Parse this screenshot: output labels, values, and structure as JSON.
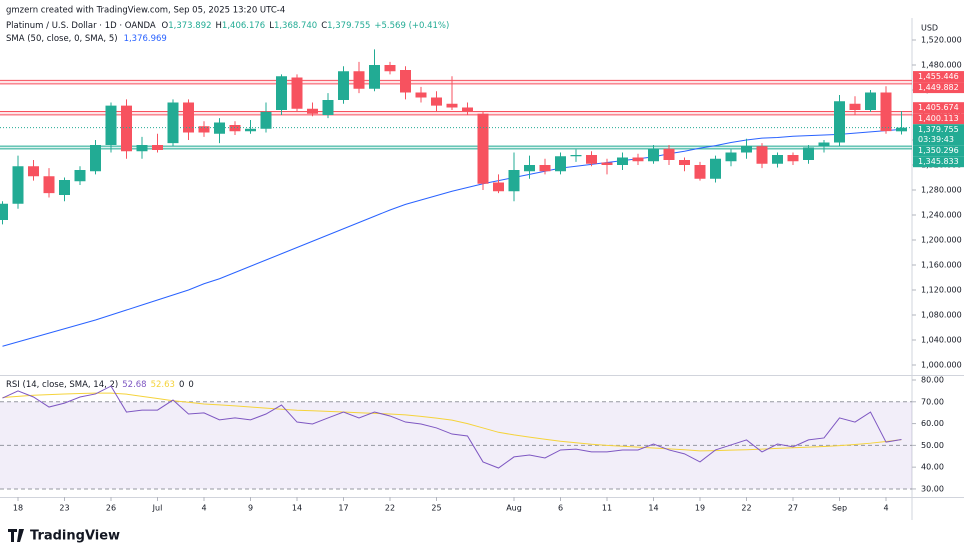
{
  "credit": "gmzern created with TradingView.com, Sep 05, 2025 13:20 UTC-4",
  "currency": "USD",
  "brand": "TradingView",
  "chart_data": [
    {
      "type": "candlestick",
      "title": "Platinum / U.S. Dollar · 1D · OANDA",
      "legend": [
        {
          "key": "O",
          "value": "1,373.892"
        },
        {
          "key": "H",
          "value": "1,406.176"
        },
        {
          "key": "L",
          "value": "1,368.740"
        },
        {
          "key": "C",
          "value": "1,379.755"
        }
      ],
      "change": "+5.569 (+0.41%)",
      "up_color": "#22ab94",
      "down_color": "#f7525f",
      "categories": [
        null,
        "18",
        null,
        null,
        "23",
        null,
        null,
        "26",
        null,
        null,
        "Jul",
        null,
        null,
        "4",
        null,
        null,
        "9",
        null,
        null,
        "14",
        null,
        null,
        "17",
        null,
        null,
        "22",
        null,
        null,
        "25",
        null,
        null,
        null,
        null,
        "Aug",
        null,
        null,
        "6",
        null,
        null,
        "11",
        null,
        null,
        "14",
        null,
        null,
        "19",
        null,
        null,
        "22",
        null,
        null,
        "27",
        null,
        null,
        "Sep",
        null,
        null,
        "4",
        null
      ],
      "open": [
        1232,
        1258,
        1318,
        1302,
        1272,
        1294,
        1310,
        1352,
        1415,
        1342,
        1352,
        1355,
        1420,
        1382,
        1370,
        1384,
        1374,
        1378,
        1408,
        1460,
        1410,
        1400,
        1424,
        1470,
        1442,
        1480,
        1472,
        1436,
        1428,
        1418,
        1412,
        1402,
        1292,
        1278,
        1310,
        1320,
        1310,
        1334,
        1336,
        1324,
        1320,
        1332,
        1326,
        1346,
        1328,
        1320,
        1298,
        1326,
        1340,
        1350,
        1322,
        1336,
        1328,
        1350,
        1356,
        1418,
        1408,
        1436,
        1373.892
      ],
      "high": [
        1262,
        1335,
        1328,
        1315,
        1300,
        1318,
        1360,
        1420,
        1425,
        1365,
        1370,
        1425,
        1425,
        1390,
        1395,
        1390,
        1392,
        1420,
        1465,
        1465,
        1420,
        1435,
        1478,
        1485,
        1505,
        1485,
        1478,
        1445,
        1438,
        1462,
        1420,
        1405,
        1305,
        1340,
        1335,
        1330,
        1340,
        1345,
        1342,
        1330,
        1340,
        1338,
        1352,
        1352,
        1332,
        1325,
        1335,
        1345,
        1362,
        1355,
        1340,
        1340,
        1352,
        1360,
        1432,
        1430,
        1440,
        1446,
        1406.176
      ],
      "low": [
        1225,
        1250,
        1295,
        1268,
        1262,
        1288,
        1305,
        1340,
        1330,
        1330,
        1340,
        1350,
        1360,
        1365,
        1355,
        1368,
        1370,
        1372,
        1400,
        1405,
        1398,
        1395,
        1418,
        1435,
        1438,
        1465,
        1425,
        1420,
        1405,
        1408,
        1400,
        1280,
        1275,
        1262,
        1298,
        1305,
        1305,
        1325,
        1318,
        1305,
        1312,
        1320,
        1322,
        1320,
        1310,
        1295,
        1292,
        1318,
        1330,
        1315,
        1316,
        1320,
        1322,
        1340,
        1350,
        1400,
        1405,
        1370,
        1368.74
      ],
      "close": [
        1258,
        1318,
        1302,
        1275,
        1296,
        1312,
        1352,
        1415,
        1342,
        1352,
        1344,
        1420,
        1372,
        1372,
        1388,
        1374,
        1378,
        1405,
        1462,
        1410,
        1402,
        1424,
        1470,
        1442,
        1480,
        1470,
        1436,
        1428,
        1415,
        1412,
        1406,
        1290,
        1278,
        1312,
        1320,
        1310,
        1334,
        1336,
        1322,
        1320,
        1332,
        1326,
        1346,
        1328,
        1320,
        1298,
        1330,
        1340,
        1350,
        1322,
        1336,
        1326,
        1348,
        1356,
        1422,
        1408,
        1436,
        1374.186,
        1379.755
      ],
      "sma": {
        "name": "SMA (50, close, 0, SMA, 5)",
        "value_label": "1,376.969",
        "color": "#2962ff",
        "values": [
          1030,
          1037,
          1044,
          1051,
          1058,
          1065,
          1072,
          1080,
          1088,
          1096,
          1104,
          1112,
          1120,
          1130,
          1138,
          1148,
          1158,
          1168,
          1178,
          1188,
          1198,
          1208,
          1218,
          1228,
          1238,
          1248,
          1257,
          1264,
          1271,
          1278,
          1284,
          1290,
          1295,
          1300,
          1305,
          1310,
          1315,
          1318,
          1321,
          1324,
          1327,
          1330,
          1333,
          1338,
          1342,
          1347,
          1351,
          1356,
          1360,
          1363,
          1364,
          1366,
          1367,
          1368,
          1369,
          1371,
          1373,
          1375,
          1376.969
        ]
      },
      "zones": [
        {
          "color": "#f7525f",
          "upper": {
            "value": 1455.446,
            "label": "1,455.446"
          },
          "lower": {
            "value": 1449.882,
            "label": "1,449.882"
          }
        },
        {
          "color": "#f7525f",
          "upper": {
            "value": 1405.674,
            "label": "1,405.674"
          },
          "lower": {
            "value": 1400.113,
            "label": "1,400.113"
          }
        },
        {
          "color": "#22ab94",
          "upper": {
            "value": 1350.296,
            "label": "1,350.296"
          },
          "lower": {
            "value": 1345.833,
            "label": "1,345.833"
          }
        }
      ],
      "last": {
        "value": 1379.755,
        "label": "1,379.755",
        "countdown": "03:39:43"
      },
      "ylim": [
        984,
        1552
      ],
      "yticks": [
        {
          "value": 1000,
          "label": "1,000.000"
        },
        {
          "value": 1040,
          "label": "1,040.000"
        },
        {
          "value": 1080,
          "label": "1,080.000"
        },
        {
          "value": 1120,
          "label": "1,120.000"
        },
        {
          "value": 1160,
          "label": "1,160.000"
        },
        {
          "value": 1200,
          "label": "1,200.000"
        },
        {
          "value": 1240,
          "label": "1,240.000"
        },
        {
          "value": 1280,
          "label": "1,280.000"
        },
        {
          "value": 1320,
          "label": "1,320.000"
        },
        {
          "value": 1360,
          "label": "1,360.000"
        },
        {
          "value": 1400,
          "label": "1,400.000"
        },
        {
          "value": 1440,
          "label": "1,440.000"
        },
        {
          "value": 1480,
          "label": "1,480.000"
        },
        {
          "value": 1520,
          "label": "1,520.000"
        }
      ],
      "grid": false
    },
    {
      "type": "line",
      "title": "RSI (14, close, SMA, 14, 2)",
      "series": [
        {
          "color": "#7e57c2",
          "value_label": "52.68",
          "values": [
            71.7,
            75,
            72.2,
            67.6,
            69.4,
            72.2,
            73.6,
            77.2,
            65.3,
            66.2,
            66.2,
            70.8,
            64.4,
            64.9,
            61.7,
            62.6,
            61.7,
            64.4,
            68.5,
            60.7,
            59.8,
            62.6,
            65.3,
            62.6,
            65.3,
            63.5,
            60.7,
            59.8,
            58.0,
            55.2,
            54.3,
            42.4,
            39.6,
            44.7,
            45.6,
            44.2,
            47.9,
            48.3,
            47.0,
            47.0,
            47.9,
            47.9,
            50.6,
            47.9,
            46.1,
            42.4,
            47.9,
            50.2,
            52.5,
            47.0,
            50.6,
            49.3,
            52.5,
            53.4,
            62.6,
            60.7,
            65.3,
            51.5,
            52.68
          ]
        },
        {
          "color": "#f5d33b",
          "value_label": "52.63",
          "values": [
            72,
            72.5,
            73,
            73.3,
            73.6,
            73.8,
            74,
            74,
            73.5,
            72.5,
            71.5,
            70.5,
            69.8,
            69,
            68.6,
            68.1,
            67.6,
            67.1,
            66.6,
            66.1,
            65.9,
            65.6,
            65.3,
            65,
            64.7,
            64.4,
            64,
            63.3,
            62.5,
            61.6,
            60,
            58,
            56,
            54.8,
            53.8,
            52.8,
            51.9,
            51.2,
            50.5,
            50,
            49.6,
            49.2,
            48.8,
            48.4,
            48,
            47.5,
            47.6,
            47.8,
            48,
            48.3,
            48.6,
            48.9,
            49.2,
            49.5,
            49.9,
            50.4,
            51,
            51.8,
            52.63
          ]
        }
      ],
      "extra_values": [
        0,
        0
      ],
      "bands": {
        "upper": 70,
        "middle": 50,
        "lower": 30
      },
      "ylim": [
        26.3,
        82.3
      ],
      "yticks": [
        {
          "value": 30,
          "label": "30.00"
        },
        {
          "value": 40,
          "label": "40.00"
        },
        {
          "value": 50,
          "label": "50.00"
        },
        {
          "value": 60,
          "label": "60.00"
        },
        {
          "value": 70,
          "label": "70.00"
        },
        {
          "value": 80,
          "label": "80.00"
        }
      ],
      "grid": false
    }
  ]
}
